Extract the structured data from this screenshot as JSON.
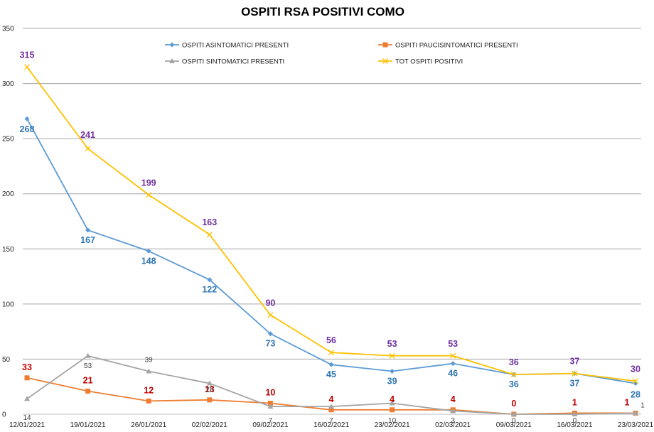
{
  "chart_data": {
    "type": "line",
    "title": "OSPITI RSA POSITIVI COMO",
    "xlabel": "",
    "ylabel": "",
    "ylim": [
      0,
      350
    ],
    "yticks": [
      0,
      50,
      100,
      150,
      200,
      250,
      300,
      350
    ],
    "grid": true,
    "legend_position": "top",
    "categories": [
      "12/01/2021",
      "19/01/2021",
      "26/01/2021",
      "02/02/2021",
      "09/02/2021",
      "16/02/2021",
      "23/02/2021",
      "02/03/2021",
      "09/03/2021",
      "16/03/2021",
      "23/03/2021"
    ],
    "series": [
      {
        "name": "OSPITI ASINTOMATICI PRESENTI",
        "color": "#5B9BD5",
        "label_color": "#2E75B6",
        "marker": "diamond",
        "values": [
          268,
          167,
          148,
          122,
          73,
          45,
          39,
          46,
          36,
          37,
          28
        ]
      },
      {
        "name": "OSPITI PAUCISINTOMATICI PRESENTI",
        "color": "#ED7D31",
        "label_color": "#C00000",
        "marker": "square",
        "values": [
          33,
          21,
          12,
          13,
          10,
          4,
          4,
          4,
          0,
          1,
          1
        ]
      },
      {
        "name": "OSPITI SINTOMATICI PRESENTI",
        "color": "#A5A5A5",
        "label_color": "#404040",
        "marker": "triangle",
        "values": [
          14,
          53,
          39,
          28,
          7,
          7,
          10,
          3,
          0,
          0,
          1
        ]
      },
      {
        "name": "TOT OSPITI POSITIVI",
        "color": "#FFC000",
        "label_color": "#7030A0",
        "marker": "x",
        "values": [
          315,
          241,
          199,
          163,
          90,
          56,
          53,
          53,
          36,
          37,
          30
        ]
      }
    ]
  }
}
